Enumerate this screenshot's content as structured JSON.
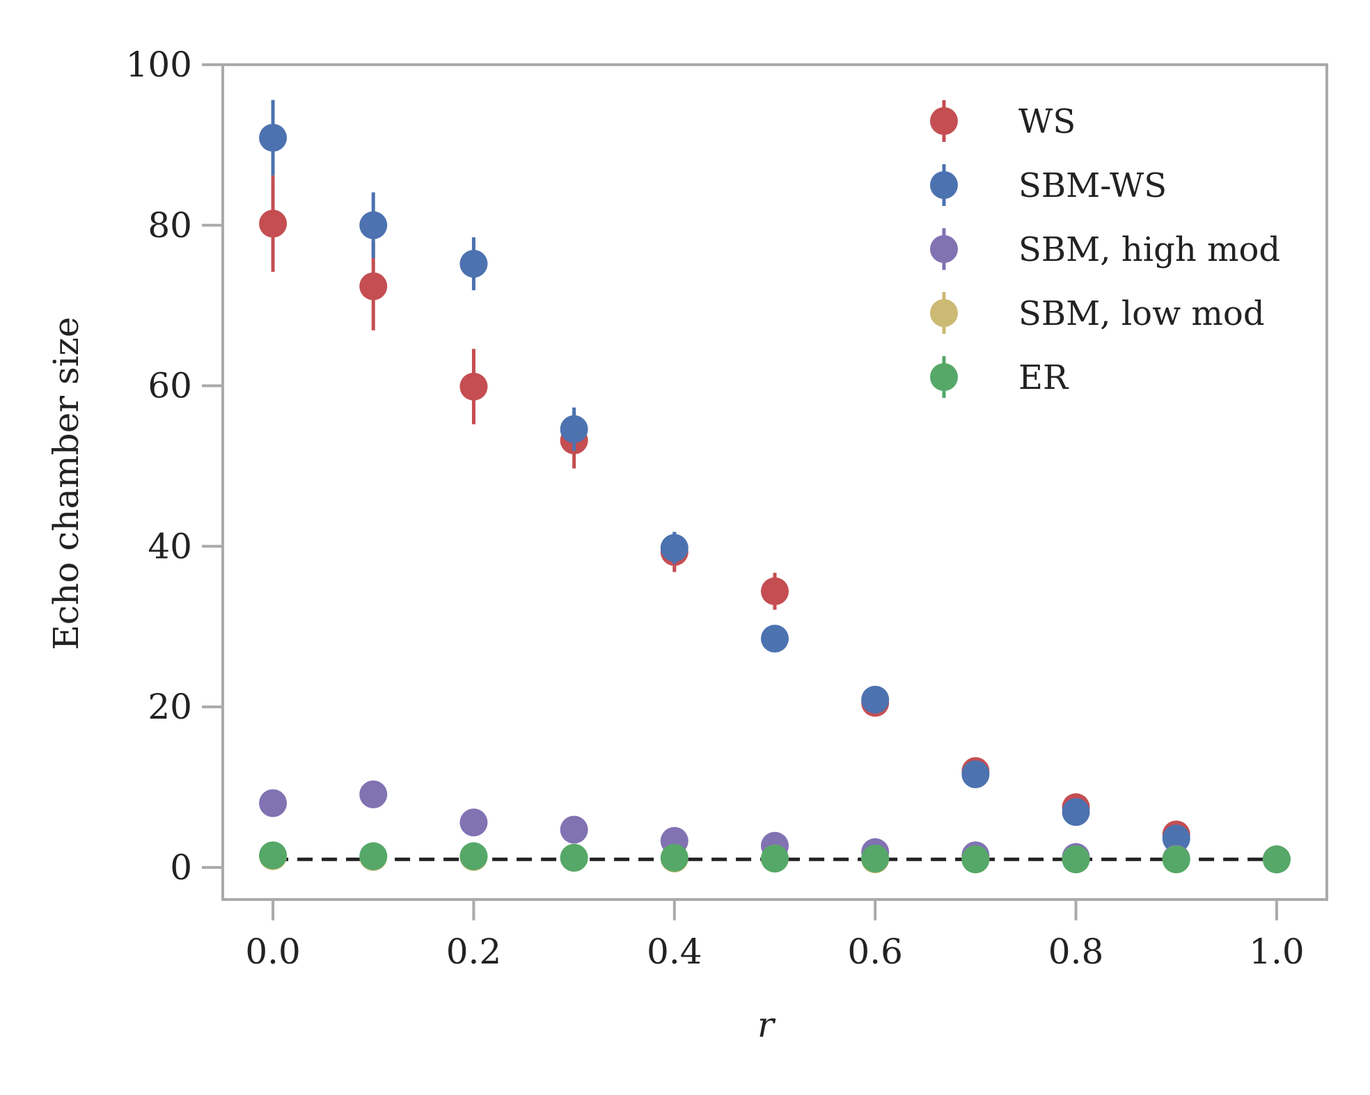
{
  "chart_data": {
    "type": "scatter",
    "xlabel": "r",
    "ylabel": "Echo chamber size",
    "xlim": [
      -0.05,
      1.05
    ],
    "ylim": [
      -4,
      100
    ],
    "xticks": [
      0.0,
      0.2,
      0.4,
      0.6,
      0.8,
      1.0
    ],
    "xtick_labels": [
      "0.0",
      "0.2",
      "0.4",
      "0.6",
      "0.8",
      "1.0"
    ],
    "yticks": [
      0,
      20,
      40,
      60,
      80,
      100
    ],
    "ytick_labels": [
      "0",
      "20",
      "40",
      "60",
      "80",
      "100"
    ],
    "grid": false,
    "legend_position": "top-right",
    "reference_line": {
      "y": 1,
      "style": "dashed",
      "color": "#222222",
      "x_range": [
        0.0,
        1.0
      ]
    },
    "x": [
      0.0,
      0.1,
      0.2,
      0.3,
      0.4,
      0.5,
      0.6,
      0.7,
      0.8,
      0.9,
      1.0
    ],
    "series": [
      {
        "name": "WS",
        "color": "#c44e52",
        "values": [
          80.2,
          72.4,
          59.9,
          53.2,
          39.3,
          34.4,
          20.5,
          12.0,
          7.5,
          4.1,
          1.0
        ],
        "errors": [
          6.0,
          5.5,
          4.7,
          3.5,
          2.5,
          2.3,
          0.8,
          0.5,
          0.5,
          0.4,
          0.1
        ]
      },
      {
        "name": "SBM-WS",
        "color": "#4c72b0",
        "values": [
          90.9,
          80.0,
          75.2,
          54.6,
          39.8,
          28.5,
          20.9,
          11.6,
          6.9,
          3.6,
          1.0
        ],
        "errors": [
          4.7,
          4.1,
          3.3,
          2.7,
          2.0,
          0.5,
          0.6,
          0.5,
          0.5,
          0.3,
          0.1
        ]
      },
      {
        "name": "SBM, high mod",
        "color": "#8172b2",
        "values": [
          8.0,
          9.1,
          5.6,
          4.7,
          3.3,
          2.7,
          1.9,
          1.5,
          1.3,
          1.1,
          1.0
        ],
        "errors": [
          0.3,
          0.3,
          0.3,
          0.3,
          0.2,
          0.2,
          0.2,
          0.1,
          0.1,
          0.1,
          0.1
        ]
      },
      {
        "name": "SBM, low mod",
        "color": "#ccb974",
        "values": [
          1.4,
          1.3,
          1.3,
          1.2,
          1.1,
          1.1,
          1.0,
          1.0,
          1.0,
          1.0,
          1.0
        ],
        "errors": [
          0.1,
          0.1,
          0.1,
          0.1,
          0.1,
          0.1,
          0.1,
          0.1,
          0.1,
          0.1,
          0.1
        ]
      },
      {
        "name": "ER",
        "color": "#55a868",
        "values": [
          1.5,
          1.4,
          1.4,
          1.2,
          1.2,
          1.1,
          1.1,
          1.0,
          1.0,
          1.0,
          1.0
        ],
        "errors": [
          0.1,
          0.1,
          0.1,
          0.1,
          0.1,
          0.1,
          0.1,
          0.1,
          0.1,
          0.1,
          0.1
        ]
      }
    ]
  }
}
